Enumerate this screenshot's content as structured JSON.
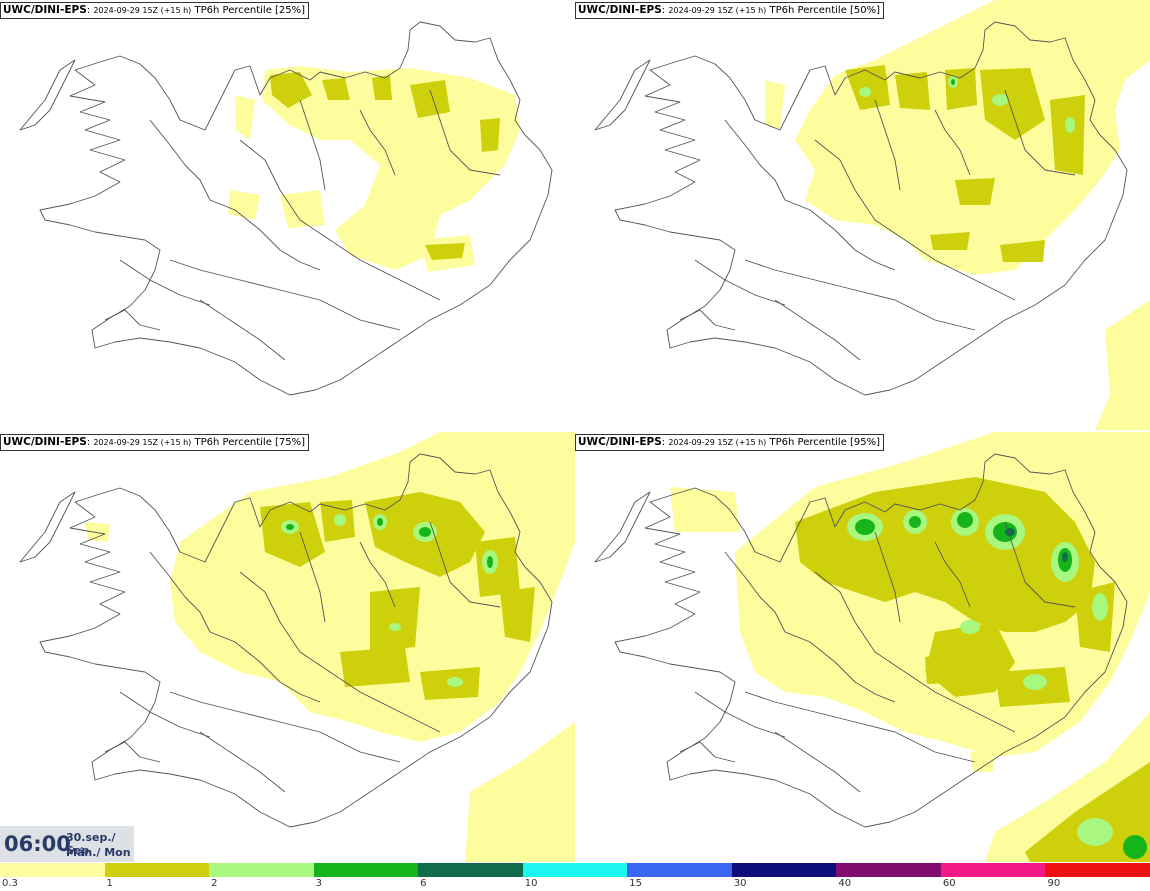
{
  "panels": [
    {
      "model": "UWC/DINI-EPS",
      "meta": "2024-09-29 15Z (+15 h)",
      "label": "TP6h Percentile [25%]"
    },
    {
      "model": "UWC/DINI-EPS",
      "meta": "2024-09-29 15Z (+15 h)",
      "label": "TP6h Percentile [50%]"
    },
    {
      "model": "UWC/DINI-EPS",
      "meta": "2024-09-29 15Z (+15 h)",
      "label": "TP6h Percentile [75%]"
    },
    {
      "model": "UWC/DINI-EPS",
      "meta": "2024-09-29 15Z (+15 h)",
      "label": "TP6h Percentile [95%]"
    }
  ],
  "valid_time": {
    "time": "06:00",
    "date_line1": "30.sep./ Sep",
    "date_line2": "Mán./ Mon"
  },
  "legend": {
    "colors": [
      "#fdfd9e",
      "#cdd00a",
      "#a8f77e",
      "#14b41a",
      "#106c4a",
      "#1cf5f0",
      "#3a66f2",
      "#0c0f7a",
      "#820c70",
      "#f21a86",
      "#f01212"
    ],
    "ticks": [
      "0.3",
      "1",
      "2",
      "3",
      "6",
      "10",
      "15",
      "30",
      "40",
      "60",
      "90"
    ]
  }
}
